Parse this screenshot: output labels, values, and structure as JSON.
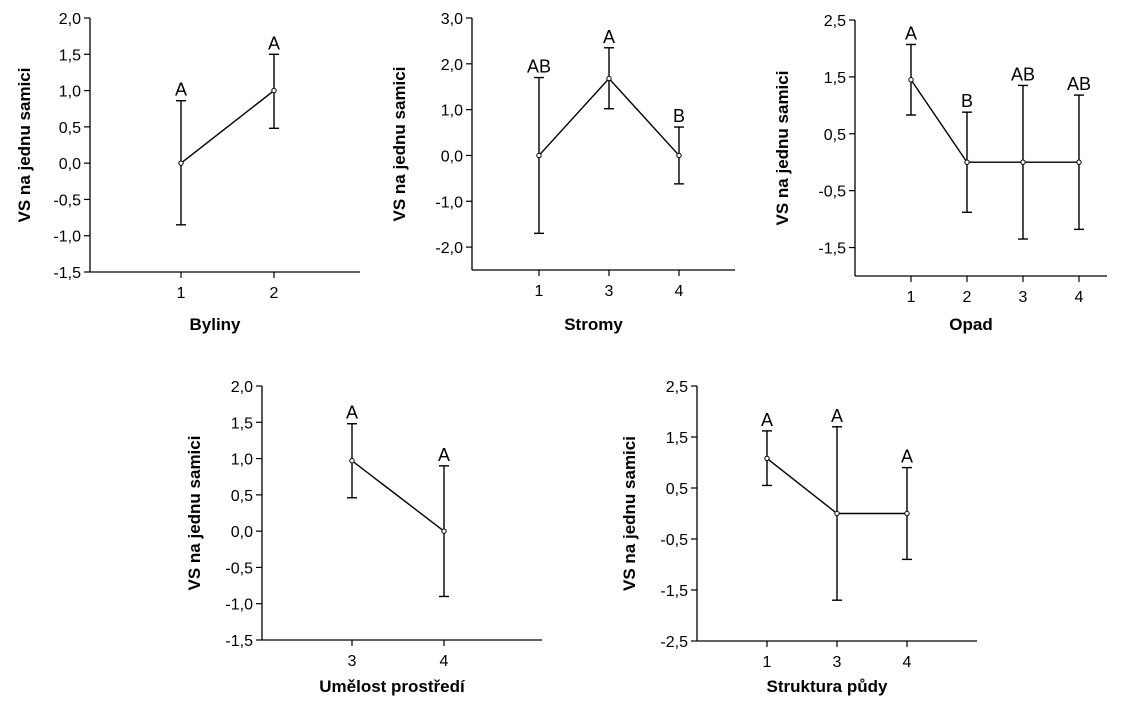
{
  "chart_data": [
    {
      "type": "line",
      "ylabel": "VS na jednu samici",
      "xlabel": "Byliny",
      "x": [
        "1",
        "2"
      ],
      "ylim": [
        -1.5,
        2.0
      ],
      "yticks": [
        "-1,5",
        "-1,0",
        "-0,5",
        "0,0",
        "0,5",
        "1,0",
        "1,5",
        "2,0"
      ],
      "series": [
        {
          "values": [
            0.0,
            1.0
          ],
          "error_low": [
            -0.85,
            0.48
          ],
          "error_high": [
            0.86,
            1.5
          ],
          "group_labels": [
            "A",
            "A"
          ]
        }
      ]
    },
    {
      "type": "line",
      "ylabel": "VS na jednu samici",
      "xlabel": "Stromy",
      "x": [
        "1",
        "3",
        "4"
      ],
      "ylim": [
        -2.5,
        3.0
      ],
      "yticks": [
        "-2,0",
        "-1,0",
        "0,0",
        "1,0",
        "2,0",
        "3,0"
      ],
      "series": [
        {
          "values": [
            0.0,
            1.68,
            0.0
          ],
          "error_low": [
            -1.7,
            1.02,
            -0.62
          ],
          "error_high": [
            1.7,
            2.35,
            0.62
          ],
          "group_labels": [
            "AB",
            "A",
            "B"
          ]
        }
      ]
    },
    {
      "type": "line",
      "ylabel": "VS na jednu samici",
      "xlabel": "Opad",
      "x": [
        "1",
        "2",
        "3",
        "4"
      ],
      "ylim": [
        -2.0,
        2.5
      ],
      "yticks": [
        "-1,5",
        "-0,5",
        "0,5",
        "1,5",
        "2,5"
      ],
      "series": [
        {
          "values": [
            1.45,
            0.0,
            0.0,
            0.0
          ],
          "error_low": [
            0.83,
            -0.88,
            -1.35,
            -1.18
          ],
          "error_high": [
            2.07,
            0.88,
            1.35,
            1.18
          ],
          "group_labels": [
            "A",
            "B",
            "AB",
            "AB"
          ]
        }
      ]
    },
    {
      "type": "line",
      "ylabel": "VS na jednu samici",
      "xlabel": "Umělost prostředí",
      "x": [
        "3",
        "4"
      ],
      "ylim": [
        -1.5,
        2.0
      ],
      "yticks": [
        "-1,5",
        "-1,0",
        "-0,5",
        "0,0",
        "0,5",
        "1,0",
        "1,5",
        "2,0"
      ],
      "series": [
        {
          "values": [
            0.97,
            0.0
          ],
          "error_low": [
            0.46,
            -0.9
          ],
          "error_high": [
            1.48,
            0.9
          ],
          "group_labels": [
            "A",
            "A"
          ]
        }
      ]
    },
    {
      "type": "line",
      "ylabel": "VS na jednu samici",
      "xlabel": "Struktura půdy",
      "x": [
        "1",
        "3",
        "4"
      ],
      "ylim": [
        -2.5,
        2.5
      ],
      "yticks": [
        "-2,5",
        "-1,5",
        "-0,5",
        "0,5",
        "1,5",
        "2,5"
      ],
      "series": [
        {
          "values": [
            1.08,
            0.0,
            0.0
          ],
          "error_low": [
            0.55,
            -1.7,
            -0.9
          ],
          "error_high": [
            1.62,
            1.7,
            0.9
          ],
          "group_labels": [
            "A",
            "A",
            "A"
          ]
        }
      ]
    }
  ]
}
